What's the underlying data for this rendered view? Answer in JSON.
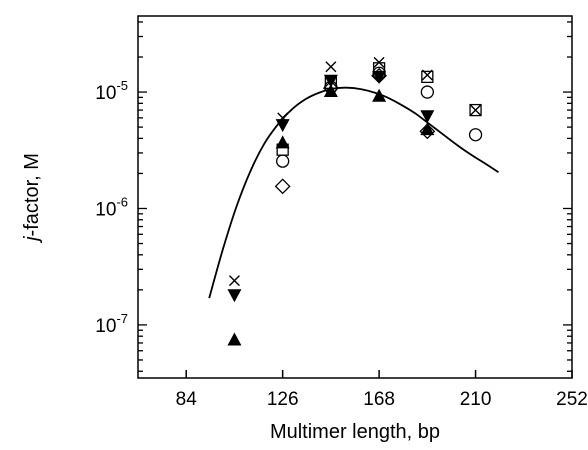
{
  "chart_data": {
    "type": "scatter",
    "title": "",
    "xlabel": "Multimer length, bp",
    "ylabel": "j-factor, M",
    "ylabel_italic_part": "j",
    "ylabel_rest": "-factor, M",
    "x_scale": "linear",
    "y_scale": "log",
    "xlim": [
      63,
      252
    ],
    "ylim": [
      3.5e-08,
      4.5e-05
    ],
    "x_ticks": [
      84,
      126,
      168,
      210,
      252
    ],
    "x_tick_labels": [
      "84",
      "126",
      "168",
      "210",
      "252"
    ],
    "y_ticks": [
      1e-07,
      1e-06,
      1e-05
    ],
    "y_tick_labels": [
      {
        "base": "10",
        "exp": "-7"
      },
      {
        "base": "10",
        "exp": "-6"
      },
      {
        "base": "10",
        "exp": "-5"
      }
    ],
    "grid": false,
    "legend": "none",
    "series": [
      {
        "marker": "cross",
        "points": [
          [
            105,
            2.4e-07
          ],
          [
            126,
            6e-06
          ],
          [
            147,
            1.65e-05
          ],
          [
            168,
            1.8e-05
          ],
          [
            189,
            1.4e-05
          ],
          [
            210,
            7e-06
          ]
        ]
      },
      {
        "marker": "triangle-down-filled",
        "points": [
          [
            105,
            1.8e-07
          ],
          [
            126,
            5.2e-06
          ],
          [
            147,
            1.25e-05
          ],
          [
            168,
            1.35e-05
          ],
          [
            189,
            6.2e-06
          ]
        ]
      },
      {
        "marker": "triangle-up-filled",
        "points": [
          [
            105,
            7.5e-08
          ],
          [
            126,
            3.7e-06
          ],
          [
            147,
            1.02e-05
          ],
          [
            168,
            9.3e-06
          ],
          [
            189,
            4.8e-06
          ]
        ]
      },
      {
        "marker": "square-open",
        "points": [
          [
            126,
            3.2e-06
          ],
          [
            147,
            1.2e-05
          ],
          [
            168,
            1.6e-05
          ],
          [
            189,
            1.35e-05
          ],
          [
            210,
            7e-06
          ]
        ]
      },
      {
        "marker": "circle-open",
        "points": [
          [
            126,
            2.55e-06
          ],
          [
            147,
            1.1e-05
          ],
          [
            168,
            1.45e-05
          ],
          [
            189,
            1e-05
          ],
          [
            210,
            4.3e-06
          ]
        ]
      },
      {
        "marker": "diamond-open",
        "points": [
          [
            126,
            1.55e-06
          ],
          [
            147,
            1.08e-05
          ],
          [
            168,
            1.38e-05
          ],
          [
            189,
            4.6e-06
          ]
        ]
      }
    ],
    "fit_curve": {
      "points": [
        [
          94,
          1.7e-07
        ],
        [
          100,
          4.5e-07
        ],
        [
          106,
          1.05e-06
        ],
        [
          112,
          2.1e-06
        ],
        [
          118,
          3.6e-06
        ],
        [
          124,
          5.3e-06
        ],
        [
          130,
          7.1e-06
        ],
        [
          136,
          8.7e-06
        ],
        [
          142,
          9.9e-06
        ],
        [
          148,
          1.07e-05
        ],
        [
          154,
          1.09e-05
        ],
        [
          160,
          1.06e-05
        ],
        [
          166,
          9.9e-06
        ],
        [
          172,
          8.9e-06
        ],
        [
          178,
          7.7e-06
        ],
        [
          184,
          6.5e-06
        ],
        [
          190,
          5.3e-06
        ],
        [
          196,
          4.3e-06
        ],
        [
          202,
          3.5e-06
        ],
        [
          208,
          2.9e-06
        ],
        [
          214,
          2.45e-06
        ],
        [
          220,
          2.05e-06
        ]
      ]
    },
    "colors": {
      "ink": "#000000",
      "background": "#ffffff"
    }
  }
}
